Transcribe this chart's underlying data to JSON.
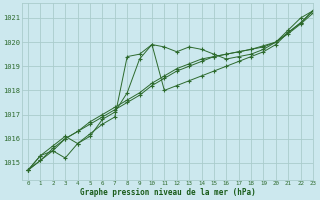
{
  "bg_color": "#cce8ee",
  "grid_color": "#aacccc",
  "line_color": "#2d6a2d",
  "marker_color": "#2d6a2d",
  "xlabel": "Graphe pression niveau de la mer (hPa)",
  "xlabel_color": "#1a5c1a",
  "ylim": [
    1014.3,
    1021.6
  ],
  "xlim": [
    -0.5,
    23
  ],
  "yticks": [
    1015,
    1016,
    1017,
    1018,
    1019,
    1020,
    1021
  ],
  "xticks": [
    0,
    1,
    2,
    3,
    4,
    5,
    6,
    7,
    8,
    9,
    10,
    11,
    12,
    13,
    14,
    15,
    16,
    17,
    18,
    19,
    20,
    21,
    22,
    23
  ],
  "series": [
    [
      1014.7,
      1015.3,
      1015.5,
      1015.2,
      1015.8,
      1016.2,
      1016.6,
      1016.9,
      1019.4,
      1019.5,
      1019.9,
      1019.8,
      1019.6,
      1019.8,
      1019.7,
      1019.5,
      1019.3,
      1019.4,
      1019.5,
      1019.7,
      1020.0,
      1020.5,
      1021.0,
      1021.3
    ],
    [
      1014.7,
      1015.3,
      1015.7,
      1016.1,
      1015.8,
      1016.1,
      1016.8,
      1017.1,
      1017.9,
      1019.3,
      1019.9,
      1018.0,
      1018.2,
      1018.4,
      1018.6,
      1018.8,
      1019.0,
      1019.2,
      1019.4,
      1019.6,
      1019.9,
      1020.4,
      1020.8,
      1021.3
    ],
    [
      1014.7,
      1015.1,
      1015.5,
      1016.0,
      1016.3,
      1016.6,
      1016.9,
      1017.2,
      1017.5,
      1017.8,
      1018.2,
      1018.5,
      1018.8,
      1019.0,
      1019.2,
      1019.4,
      1019.5,
      1019.6,
      1019.7,
      1019.8,
      1020.0,
      1020.4,
      1020.8,
      1021.3
    ],
    [
      1014.7,
      1015.1,
      1015.6,
      1016.0,
      1016.3,
      1016.7,
      1017.0,
      1017.3,
      1017.6,
      1017.9,
      1018.3,
      1018.6,
      1018.9,
      1019.1,
      1019.3,
      1019.4,
      1019.5,
      1019.6,
      1019.7,
      1019.85,
      1020.0,
      1020.35,
      1020.75,
      1021.2
    ]
  ]
}
